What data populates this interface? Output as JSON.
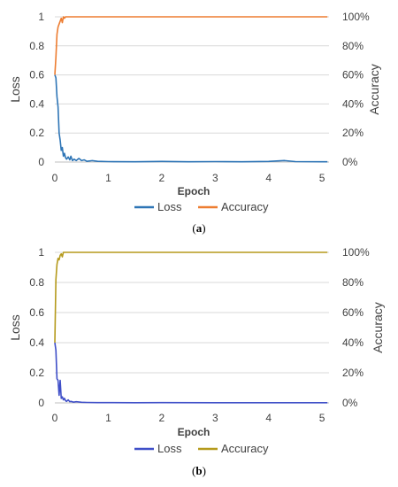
{
  "colors": {
    "panel_a_loss": "#2e75b6",
    "panel_a_accuracy": "#ed7d31",
    "panel_b_loss": "#3f4fc8",
    "panel_b_accuracy": "#b59a1c",
    "grid": "#d9d9d9",
    "text": "#404040"
  },
  "chart_data": [
    {
      "type": "line",
      "panel_label": "(a)",
      "xlabel": "Epoch",
      "ylabel_left": "Loss",
      "ylabel_right": "Accuracy",
      "xlim": [
        0,
        5.13
      ],
      "ylim_left": [
        0,
        1
      ],
      "ylim_right": [
        0,
        1
      ],
      "x_ticks": [
        "0",
        "1",
        "2",
        "3",
        "4",
        "5"
      ],
      "y_left_ticks": [
        "0",
        "0.2",
        "0.4",
        "0.6",
        "0.8",
        "1"
      ],
      "y_right_ticks": [
        "0%",
        "20%",
        "40%",
        "60%",
        "80%",
        "100%"
      ],
      "grid": "horizontal",
      "legend": "bottom",
      "series": [
        {
          "name": "Loss",
          "axis": "left",
          "color_key": "panel_a_loss",
          "x": [
            0.0,
            0.02,
            0.04,
            0.06,
            0.08,
            0.1,
            0.12,
            0.14,
            0.16,
            0.18,
            0.2,
            0.22,
            0.25,
            0.28,
            0.3,
            0.33,
            0.36,
            0.4,
            0.45,
            0.5,
            0.55,
            0.6,
            0.7,
            0.8,
            1.0,
            1.5,
            2.0,
            2.5,
            3.0,
            3.5,
            4.0,
            4.3,
            4.5,
            5.0,
            5.1
          ],
          "y": [
            0.6,
            0.58,
            0.45,
            0.38,
            0.2,
            0.15,
            0.08,
            0.1,
            0.04,
            0.06,
            0.03,
            0.02,
            0.035,
            0.015,
            0.04,
            0.01,
            0.02,
            0.01,
            0.025,
            0.01,
            0.015,
            0.005,
            0.01,
            0.005,
            0.003,
            0.002,
            0.004,
            0.002,
            0.003,
            0.002,
            0.004,
            0.01,
            0.003,
            0.002,
            0.002
          ]
        },
        {
          "name": "Accuracy",
          "axis": "right",
          "color_key": "panel_a_accuracy",
          "x": [
            0.0,
            0.02,
            0.04,
            0.06,
            0.08,
            0.1,
            0.12,
            0.14,
            0.16,
            0.18,
            0.2,
            0.25,
            0.3,
            0.5,
            1.0,
            2.0,
            3.0,
            4.0,
            5.0,
            5.1
          ],
          "y": [
            0.6,
            0.72,
            0.88,
            0.93,
            0.95,
            0.97,
            0.99,
            0.96,
            1.0,
            0.99,
            1.0,
            1.0,
            1.0,
            1.0,
            1.0,
            1.0,
            1.0,
            1.0,
            1.0,
            1.0
          ]
        }
      ]
    },
    {
      "type": "line",
      "panel_label": "(b)",
      "xlabel": "Epoch",
      "ylabel_left": "Loss",
      "ylabel_right": "Accuracy",
      "xlim": [
        0,
        5.13
      ],
      "ylim_left": [
        0,
        1
      ],
      "ylim_right": [
        0,
        1
      ],
      "x_ticks": [
        "0",
        "1",
        "2",
        "3",
        "4",
        "5"
      ],
      "y_left_ticks": [
        "0",
        "0.2",
        "0.4",
        "0.6",
        "0.8",
        "1"
      ],
      "y_right_ticks": [
        "0%",
        "20%",
        "40%",
        "60%",
        "80%",
        "100%"
      ],
      "grid": "horizontal",
      "legend": "bottom",
      "series": [
        {
          "name": "Loss",
          "axis": "left",
          "color_key": "panel_b_loss",
          "x": [
            0.0,
            0.02,
            0.04,
            0.06,
            0.08,
            0.1,
            0.12,
            0.14,
            0.16,
            0.18,
            0.2,
            0.22,
            0.25,
            0.28,
            0.3,
            0.35,
            0.4,
            0.5,
            0.6,
            0.8,
            1.0,
            1.5,
            2.0,
            3.0,
            4.0,
            5.0,
            5.1
          ],
          "y": [
            0.4,
            0.35,
            0.16,
            0.15,
            0.05,
            0.15,
            0.03,
            0.04,
            0.02,
            0.03,
            0.015,
            0.01,
            0.02,
            0.008,
            0.01,
            0.005,
            0.008,
            0.004,
            0.003,
            0.002,
            0.002,
            0.001,
            0.002,
            0.001,
            0.001,
            0.001,
            0.001
          ]
        },
        {
          "name": "Accuracy",
          "axis": "right",
          "color_key": "panel_b_accuracy",
          "x": [
            0.0,
            0.02,
            0.04,
            0.06,
            0.08,
            0.1,
            0.12,
            0.14,
            0.16,
            0.2,
            0.3,
            0.5,
            1.0,
            2.0,
            3.0,
            4.0,
            5.0,
            5.1
          ],
          "y": [
            0.4,
            0.82,
            0.92,
            0.96,
            0.95,
            0.98,
            0.99,
            0.97,
            1.0,
            1.0,
            1.0,
            1.0,
            1.0,
            1.0,
            1.0,
            1.0,
            1.0,
            1.0
          ]
        }
      ]
    }
  ]
}
